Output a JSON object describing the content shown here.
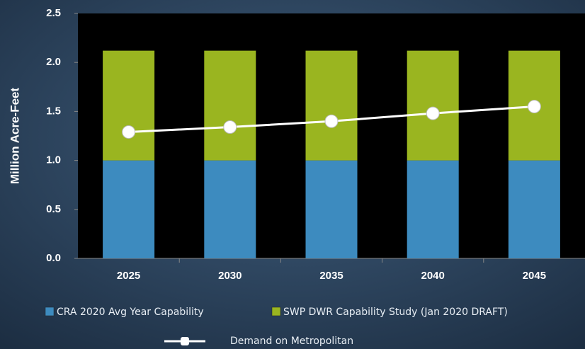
{
  "chart_data": {
    "type": "bar",
    "stacked": true,
    "y_label": "Million Acre-Feet",
    "categories": [
      "2025",
      "2030",
      "2035",
      "2040",
      "2045"
    ],
    "series": [
      {
        "name": "CRA 2020 Avg Year Capability",
        "color": "#3d8bbf",
        "values": [
          1.0,
          1.0,
          1.0,
          1.0,
          1.0
        ]
      },
      {
        "name": "SWP DWR Capability Study (Jan 2020 DRAFT)",
        "color": "#9ab520",
        "values": [
          1.12,
          1.12,
          1.12,
          1.12,
          1.12
        ]
      },
      {
        "name": "Demand on Metropolitan",
        "type": "line",
        "color": "#ffffff",
        "values": [
          1.29,
          1.34,
          1.4,
          1.48,
          1.55
        ]
      }
    ],
    "ylim": [
      0,
      2.5
    ],
    "yticks": [
      {
        "value": 0,
        "label": "0.0"
      },
      {
        "value": 0.5,
        "label": "0.5"
      },
      {
        "value": 1,
        "label": "1.0"
      },
      {
        "value": 1.5,
        "label": "1.5"
      },
      {
        "value": 2,
        "label": "2.0"
      },
      {
        "value": 2.5,
        "label": "2.5"
      }
    ]
  }
}
